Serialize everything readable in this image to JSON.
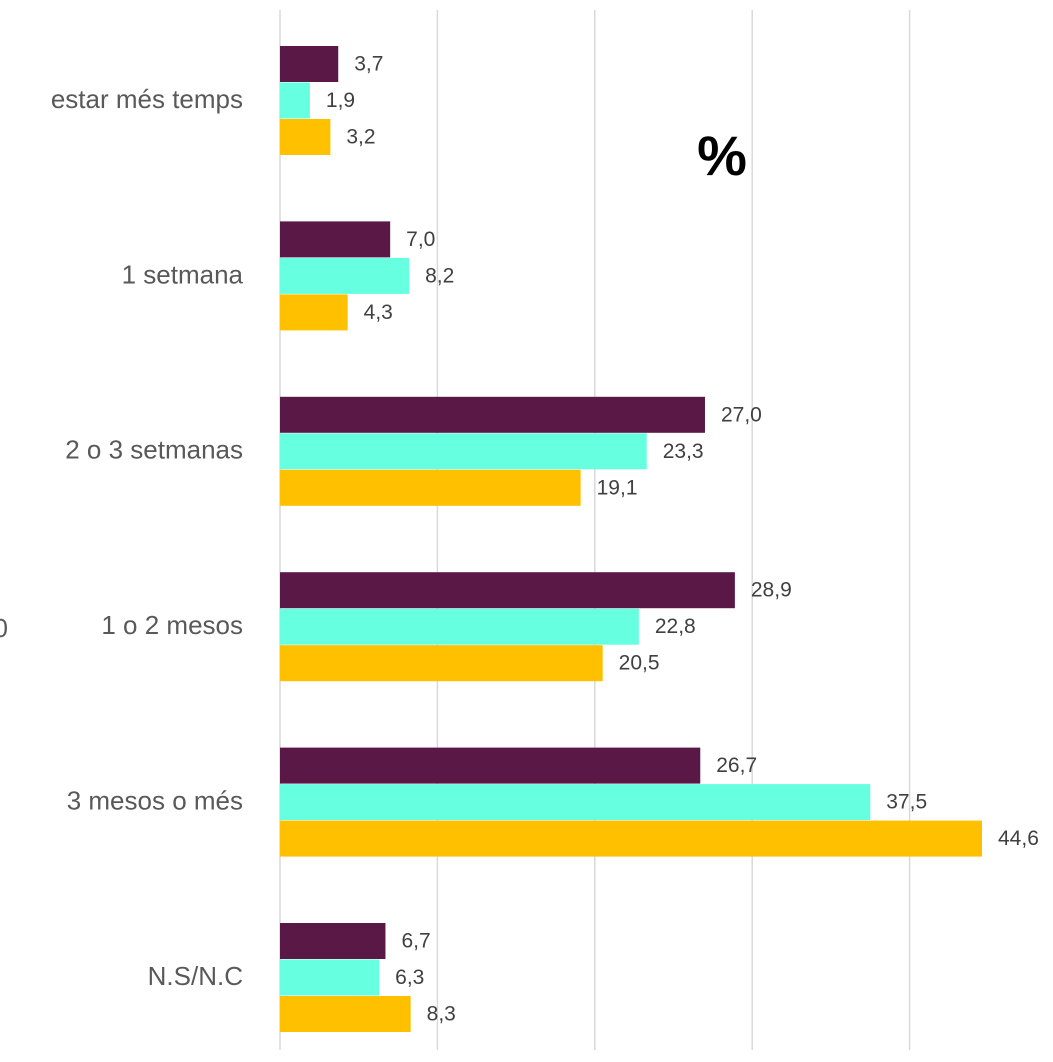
{
  "chart_data": {
    "type": "hbar",
    "title": "%",
    "annotation": "0",
    "categories": [
      "estar més temps",
      "1 setmana",
      "2 o 3 setmanas",
      "1 o 2 mesos",
      "3 mesos o més",
      "N.S/N.C"
    ],
    "series": [
      {
        "color": "#5a1846",
        "values": [
          3.7,
          7.0,
          27.0,
          28.9,
          26.7,
          6.7
        ],
        "value_labels": [
          "3,7",
          "7,0",
          "27,0",
          "28,9",
          "26,7",
          "6,7"
        ]
      },
      {
        "color": "#66ffe0",
        "values": [
          1.9,
          8.2,
          23.3,
          22.8,
          37.5,
          6.3
        ],
        "value_labels": [
          "1,9",
          "8,2",
          "23,3",
          "22,8",
          "37,5",
          "6,3"
        ]
      },
      {
        "color": "#ffc000",
        "values": [
          3.2,
          4.3,
          19.1,
          20.5,
          44.6,
          8.3
        ],
        "value_labels": [
          "3,2",
          "4,3",
          "19,1",
          "20,5",
          "44,6",
          "8,3"
        ]
      }
    ],
    "xlim": [
      0,
      49
    ],
    "xticks": [
      0,
      10,
      20,
      30,
      40
    ],
    "grid": true
  }
}
